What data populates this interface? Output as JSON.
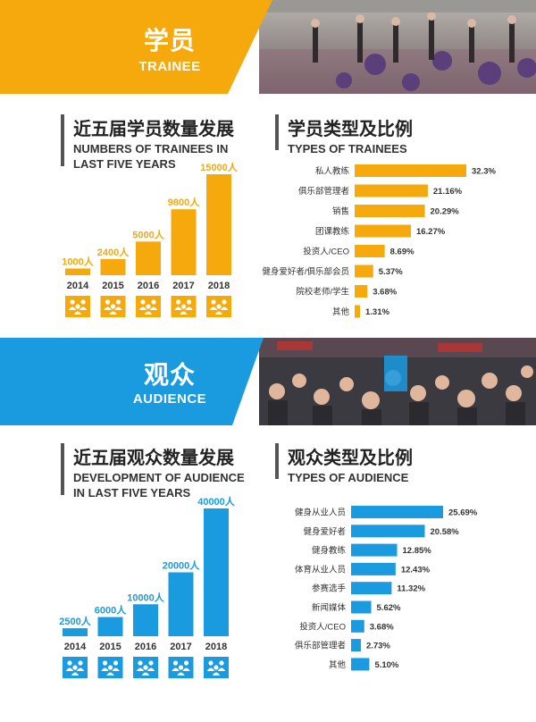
{
  "colors": {
    "trainee": "#f5a90c",
    "audience": "#1a9be0",
    "dark": "#333333"
  },
  "trainee_banner": {
    "title": "学员",
    "subtitle": "TRAINEE"
  },
  "audience_banner": {
    "title": "观众",
    "subtitle": "AUDIENCE"
  },
  "trainee_growth": {
    "title_cn": "近五届学员数量发展",
    "title_en_1": "NUMBERS OF TRAINEES IN",
    "title_en_2": "LAST FIVE YEARS"
  },
  "trainee_types": {
    "title_cn": "学员类型及比例",
    "title_en_1": "TYPES OF TRAINEES"
  },
  "audience_growth": {
    "title_cn": "近五届观众数量发展",
    "title_en_1": "DEVELOPMENT OF AUDIENCE",
    "title_en_2": "IN LAST FIVE YEARS"
  },
  "audience_types": {
    "title_cn": "观众类型及比例",
    "title_en_1": "TYPES OF AUDIENCE"
  },
  "chart_data": [
    {
      "type": "bar",
      "id": "trainee-growth",
      "categories": [
        "2014",
        "2015",
        "2016",
        "2017",
        "2018"
      ],
      "values": [
        1000,
        2400,
        5000,
        9800,
        15000
      ],
      "value_labels": [
        "1000人",
        "2400人",
        "5000人",
        "9800人",
        "15000人"
      ],
      "color": "#f5a90c",
      "icon": "people-group-icon"
    },
    {
      "type": "bar",
      "id": "trainee-types",
      "orientation": "horizontal",
      "categories": [
        "私人教练",
        "俱乐部管理者",
        "销售",
        "团课教练",
        "投资人/CEO",
        "健身爱好者/俱乐部会员",
        "院校老师/学生",
        "其他"
      ],
      "values": [
        32.3,
        21.16,
        20.29,
        16.27,
        8.69,
        5.37,
        3.68,
        1.31
      ],
      "value_labels": [
        "32.3%",
        "21.16%",
        "20.29%",
        "16.27%",
        "8.69%",
        "5.37%",
        "3.68%",
        "1.31%"
      ],
      "color": "#f5a90c"
    },
    {
      "type": "bar",
      "id": "audience-growth",
      "categories": [
        "2014",
        "2015",
        "2016",
        "2017",
        "2018"
      ],
      "values": [
        2500,
        6000,
        10000,
        20000,
        40000
      ],
      "value_labels": [
        "2500人",
        "6000人",
        "10000人",
        "20000人",
        "40000人"
      ],
      "color": "#1a9be0",
      "icon": "people-group-icon"
    },
    {
      "type": "bar",
      "id": "audience-types",
      "orientation": "horizontal",
      "categories": [
        "健身从业人员",
        "健身爱好者",
        "健身教练",
        "体育从业人员",
        "参赛选手",
        "新闻媒体",
        "投资人/CEO",
        "俱乐部管理者",
        "其他"
      ],
      "values": [
        25.69,
        20.58,
        12.85,
        12.43,
        11.32,
        5.62,
        3.68,
        2.73,
        5.1
      ],
      "value_labels": [
        "25.69%",
        "20.58%",
        "12.85%",
        "12.43%",
        "11.32%",
        "5.62%",
        "3.68%",
        "2.73%",
        "5.10%"
      ],
      "color": "#1a9be0"
    }
  ]
}
